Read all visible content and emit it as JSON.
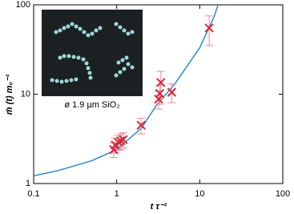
{
  "chart_data": {
    "type": "scatter",
    "xlabel": "t τ⁻¹",
    "ylabel": "m̄ (t) m₀⁻¹",
    "inset_label": "ø 1.9 µm SiO₂",
    "xscale": "log",
    "yscale": "log",
    "xlim": [
      0.1,
      100
    ],
    "ylim": [
      1,
      100
    ],
    "xticks": [
      0.1,
      1,
      10,
      100
    ],
    "yticks": [
      1,
      10,
      100
    ],
    "series": [
      {
        "type": "scatter",
        "color": "#d42a3a",
        "error_color": "#e78a98",
        "x": [
          0.92,
          0.96,
          1.05,
          1.12,
          1.2,
          1.97,
          3.2,
          3.3,
          3.4,
          4.6,
          13
        ],
        "y": [
          2.4,
          2.7,
          2.9,
          3.0,
          3.1,
          4.5,
          8.8,
          10.2,
          13.5,
          10.5,
          55
        ],
        "y_err": [
          0.45,
          0.5,
          0.55,
          0.6,
          0.6,
          0.9,
          2.0,
          2.5,
          4.5,
          2.5,
          20
        ]
      },
      {
        "type": "line",
        "color": "#2a8bc8",
        "x": [
          0.1,
          0.2,
          0.5,
          1,
          2,
          3,
          5,
          10,
          15,
          16.6
        ],
        "y": [
          1.22,
          1.4,
          1.8,
          2.4,
          4.2,
          7.5,
          13,
          33,
          75,
          100
        ]
      }
    ]
  }
}
